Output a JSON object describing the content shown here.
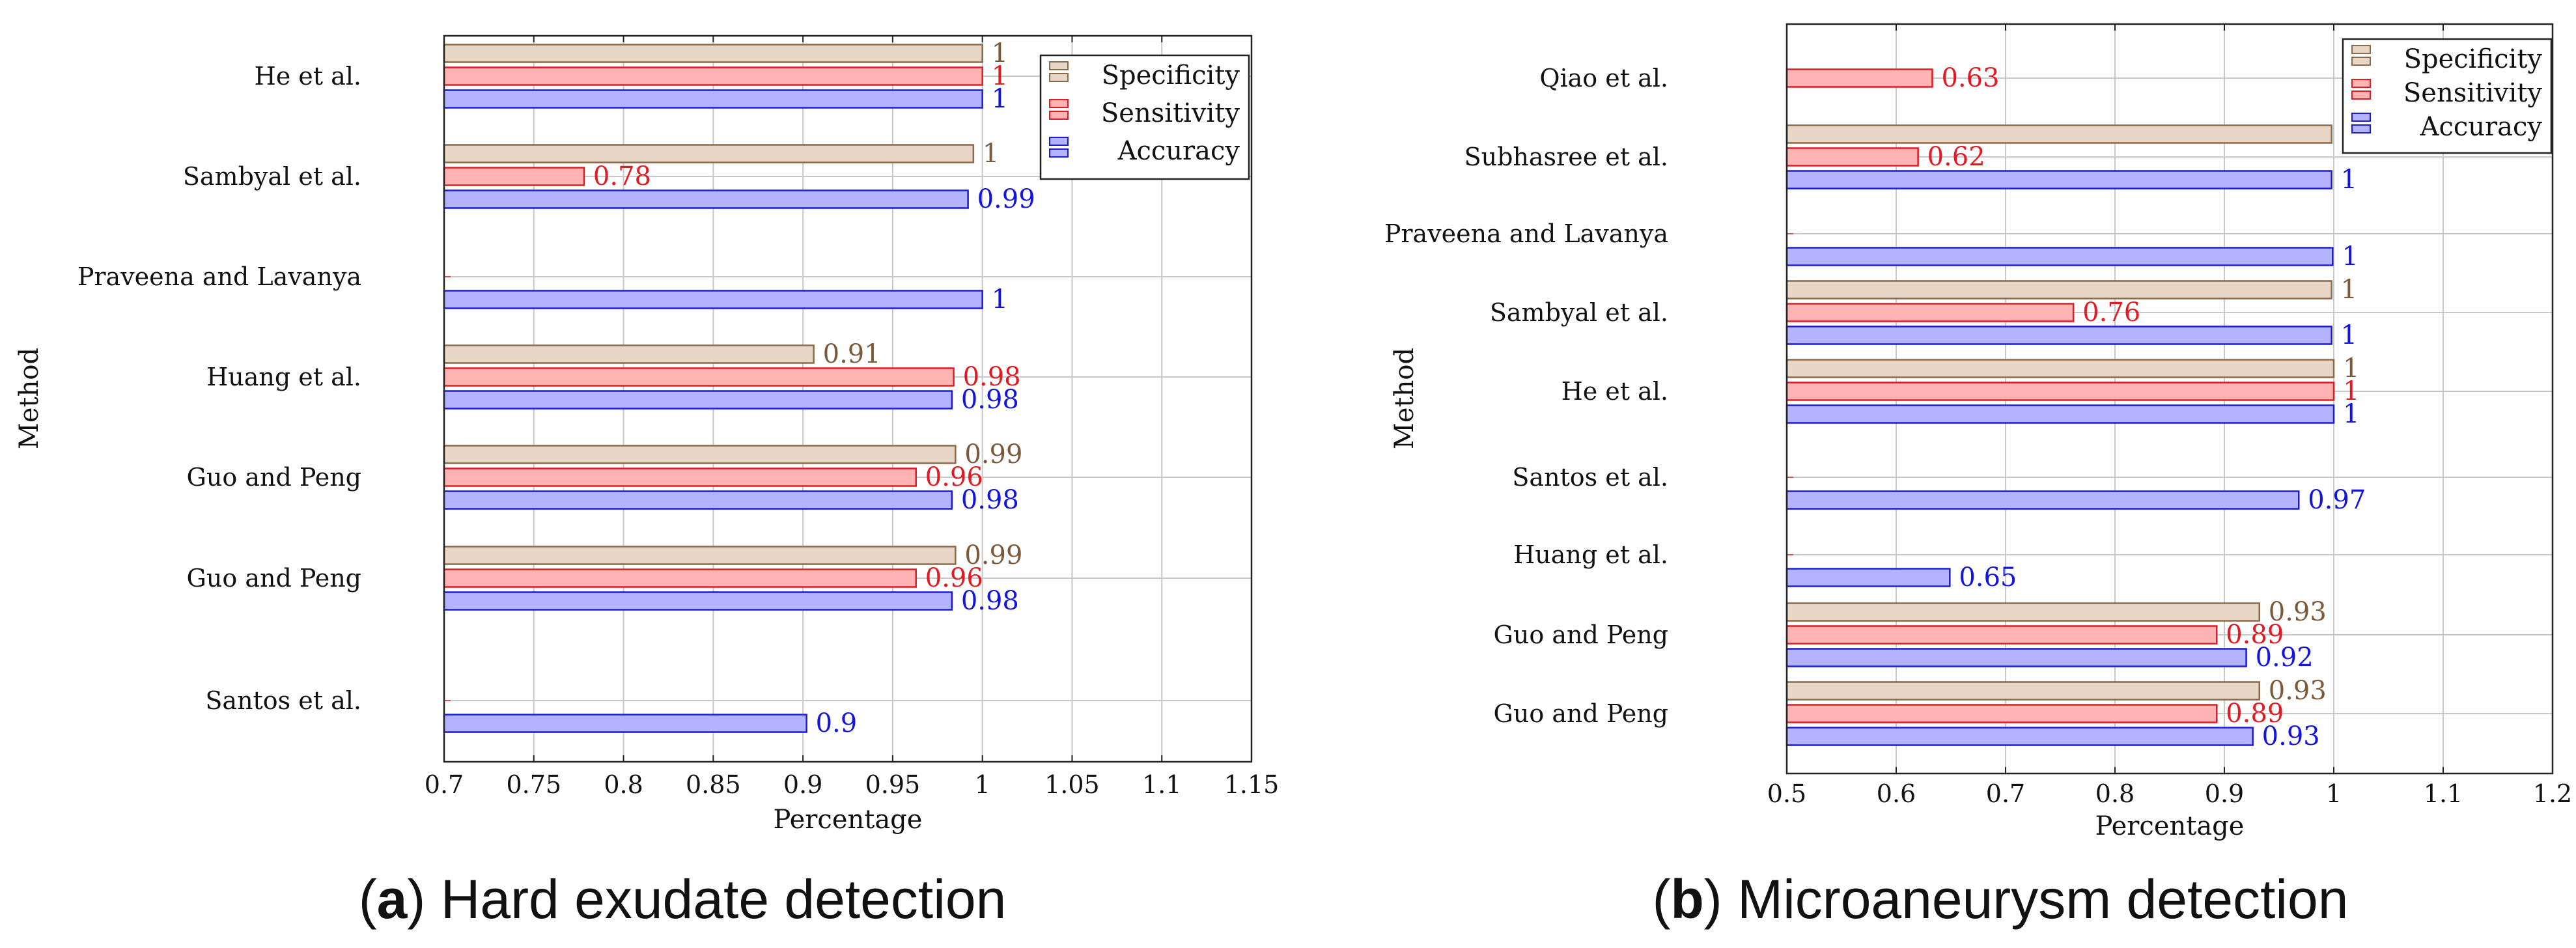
{
  "colors": {
    "specificity_fill": "#e8d6c6",
    "specificity_stroke": "#8a6a4c",
    "specificity_text": "#7a5a3a",
    "sensitivity_fill": "#ffb3b3",
    "sensitivity_stroke": "#e01b24",
    "sensitivity_text": "#e01b24",
    "accuracy_fill": "#b3b3ff",
    "accuracy_stroke": "#1c1cd8",
    "accuracy_text": "#1414e0",
    "grid": "#c8c8c8"
  },
  "chart_data": [
    {
      "type": "bar",
      "orientation": "horizontal",
      "caption_letter": "a",
      "caption_text": ") Hard exudate detection",
      "caption_open": "(",
      "xlabel": "Percentage",
      "ylabel": "Method",
      "xlim": [
        0.7,
        1.15
      ],
      "xticks": [
        0.7,
        0.75,
        0.8,
        0.85,
        0.9,
        0.95,
        1,
        1.05,
        1.1,
        1.15
      ],
      "xtick_labels": [
        "0.7",
        "0.75",
        "0.8",
        "0.85",
        "0.9",
        "0.95",
        "1",
        "1.05",
        "1.1",
        "1.15"
      ],
      "legend_position": "top-right",
      "categories": [
        "He et al.",
        "Sambyal et al.",
        "Praveena and Lavanya",
        "Huang et al.",
        "Guo and Peng",
        "Guo and Peng",
        "Santos et al."
      ],
      "series": [
        {
          "name": "Specificity",
          "values": [
            1,
            0.995,
            null,
            0.906,
            0.985,
            0.985,
            null
          ],
          "labels": [
            "1",
            "1",
            "",
            "0.91",
            "0.99",
            "0.99",
            ""
          ]
        },
        {
          "name": "Sensitivity",
          "values": [
            1,
            0.778,
            null,
            0.984,
            0.963,
            0.963,
            null
          ],
          "labels": [
            "1",
            "0.78",
            "",
            "0.98",
            "0.96",
            "0.96",
            ""
          ]
        },
        {
          "name": "Accuracy",
          "values": [
            1,
            0.992,
            1,
            0.983,
            0.983,
            0.983,
            0.902
          ],
          "labels": [
            "1",
            "0.99",
            "1",
            "0.98",
            "0.98",
            "0.98",
            "0.9"
          ]
        }
      ]
    },
    {
      "type": "bar",
      "orientation": "horizontal",
      "caption_letter": "b",
      "caption_text": ") Microaneurysm detection",
      "caption_open": "(",
      "xlabel": "Percentage",
      "ylabel": "Method",
      "xlim": [
        0.5,
        1.2
      ],
      "xticks": [
        0.5,
        0.6,
        0.7,
        0.8,
        0.9,
        1,
        1.1,
        1.2
      ],
      "xtick_labels": [
        "0.5",
        "0.6",
        "0.7",
        "0.8",
        "0.9",
        "1",
        "1.1",
        "1.2"
      ],
      "legend_position": "top-right",
      "categories": [
        "Qiao et al.",
        "Subhasree et al.",
        "Praveena and Lavanya",
        "Sambyal et al.",
        "He et al.",
        "Santos et al.",
        "Huang et al.",
        "Guo and Peng",
        "Guo and Peng"
      ],
      "series": [
        {
          "name": "Specificity",
          "values": [
            null,
            0.998,
            null,
            0.998,
            1,
            null,
            null,
            0.932,
            0.932
          ],
          "labels": [
            "",
            "1",
            "",
            "1",
            "1",
            "",
            "",
            "0.93",
            "0.93"
          ]
        },
        {
          "name": "Sensitivity",
          "values": [
            0.633,
            0.62,
            null,
            0.762,
            1,
            null,
            null,
            0.893,
            0.893
          ],
          "labels": [
            "0.63",
            "0.62",
            "",
            "0.76",
            "1",
            "",
            "",
            "0.89",
            "0.89"
          ]
        },
        {
          "name": "Accuracy",
          "values": [
            null,
            0.998,
            0.999,
            0.998,
            1,
            0.968,
            0.649,
            0.92,
            0.926
          ],
          "labels": [
            "",
            "1",
            "1",
            "1",
            "1",
            "0.97",
            "0.65",
            "0.92",
            "0.93"
          ]
        }
      ]
    }
  ]
}
